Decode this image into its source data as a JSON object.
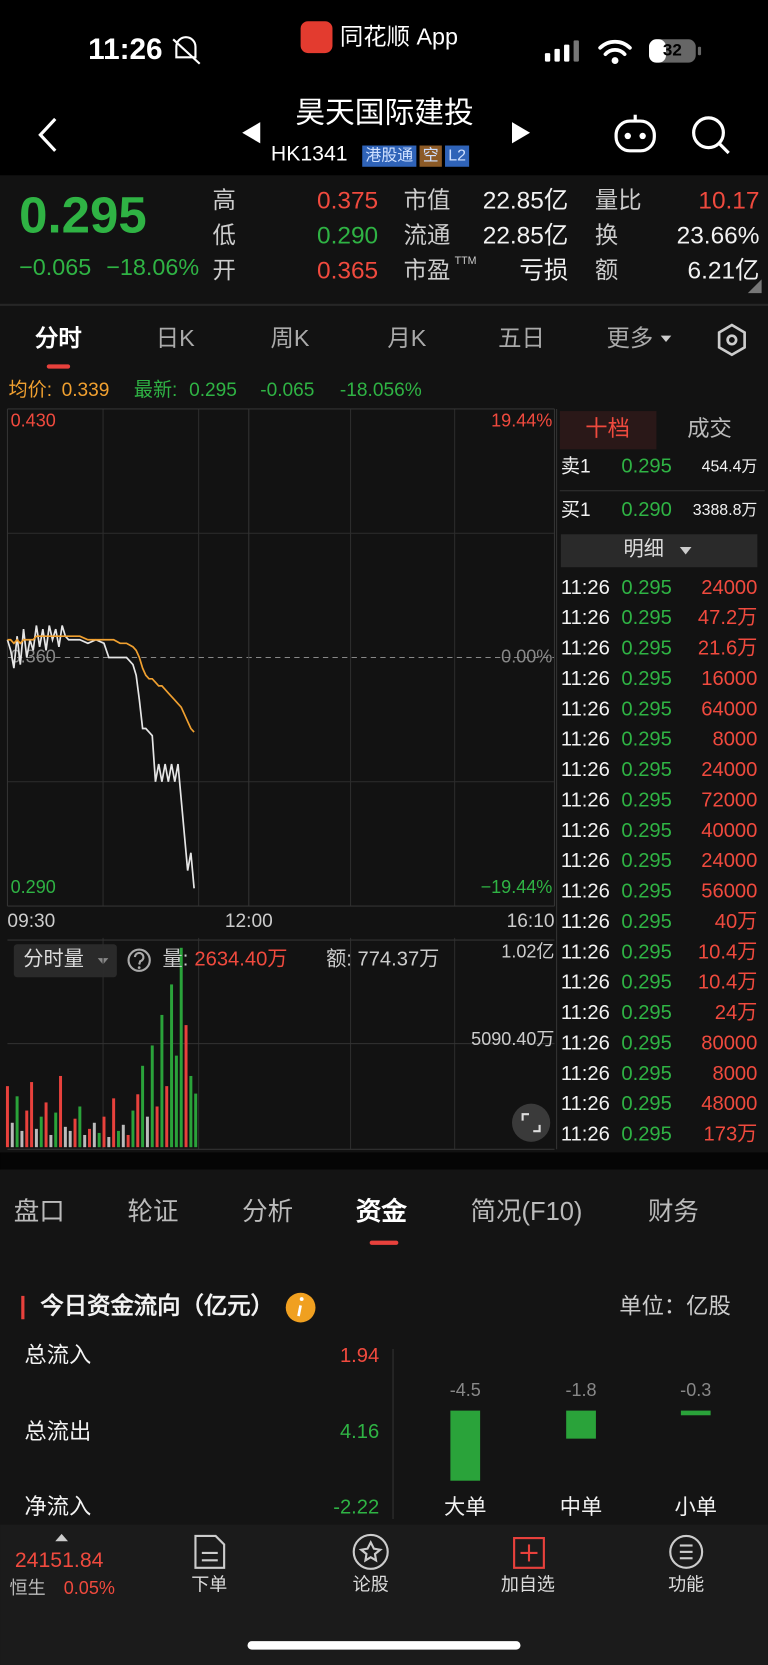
{
  "status_bar": {
    "time": "11:26",
    "app": "同花顺 App",
    "battery": "32"
  },
  "header": {
    "title": "昊天国际建投",
    "code": "HK1341",
    "tags": [
      "港股通",
      "空",
      "L2"
    ]
  },
  "quote": {
    "price": "0.295",
    "change": "−0.065",
    "change_pct": "−18.06%",
    "ttm": "TTM",
    "stats": [
      [
        "高",
        "0.375"
      ],
      [
        "低",
        "0.290"
      ],
      [
        "开",
        "0.365"
      ],
      [
        "市值",
        "22.85亿"
      ],
      [
        "流通",
        "22.85亿"
      ],
      [
        "市盈",
        "亏损"
      ],
      [
        "量比",
        "10.17"
      ],
      [
        "换",
        "23.66%"
      ],
      [
        "额",
        "6.21亿"
      ]
    ]
  },
  "chart_tabs": [
    "分时",
    "日K",
    "周K",
    "月K",
    "五日",
    "更多"
  ],
  "chart_info": {
    "avg": "0.339",
    "last": "0.295",
    "change": "-0.065",
    "change_pct": "-18.056%"
  },
  "chart_data": [
    {
      "type": "line",
      "x": [
        0,
        2,
        4,
        6,
        8,
        10,
        12,
        14,
        16,
        18,
        20,
        22,
        24,
        26,
        28,
        30,
        32,
        34,
        36,
        38,
        40,
        45,
        50,
        55,
        60,
        63,
        66,
        70,
        74,
        78,
        80,
        82,
        84,
        86,
        88,
        90,
        92,
        94,
        96,
        98,
        100,
        102,
        104,
        106,
        108,
        110,
        112,
        114,
        116
      ],
      "series": [
        {
          "name": "最新:",
          "color": "#e6e6e6",
          "values": [
            0.365,
            0.362,
            0.357,
            0.366,
            0.358,
            0.368,
            0.36,
            0.365,
            0.362,
            0.369,
            0.363,
            0.368,
            0.362,
            0.369,
            0.365,
            0.368,
            0.363,
            0.369,
            0.366,
            0.365,
            0.365,
            0.365,
            0.364,
            0.365,
            0.364,
            0.36,
            0.36,
            0.36,
            0.36,
            0.358,
            0.355,
            0.348,
            0.34,
            0.34,
            0.339,
            0.338,
            0.325,
            0.33,
            0.325,
            0.33,
            0.325,
            0.33,
            0.325,
            0.33,
            0.32,
            0.31,
            0.3,
            0.305,
            0.295
          ]
        },
        {
          "name": "均价:",
          "color": "#f0a030",
          "values": [
            0.365,
            0.365,
            0.364,
            0.365,
            0.364,
            0.365,
            0.365,
            0.365,
            0.365,
            0.366,
            0.366,
            0.366,
            0.366,
            0.366,
            0.366,
            0.366,
            0.366,
            0.366,
            0.366,
            0.366,
            0.366,
            0.366,
            0.365,
            0.365,
            0.365,
            0.365,
            0.365,
            0.364,
            0.364,
            0.363,
            0.362,
            0.36,
            0.357,
            0.355,
            0.354,
            0.354,
            0.353,
            0.352,
            0.352,
            0.351,
            0.35,
            0.349,
            0.348,
            0.347,
            0.346,
            0.344,
            0.342,
            0.34,
            0.339
          ]
        }
      ],
      "xlim": [
        0,
        340
      ],
      "xticks": [
        {
          "value": 0,
          "label": "09:30"
        },
        {
          "value": 150,
          "label": "12:00"
        },
        {
          "value": 340,
          "label": "16:10"
        }
      ],
      "ylim": [
        0.29,
        0.43
      ],
      "yticks": [
        {
          "value": 0.43,
          "label": "0.430"
        },
        {
          "value": 0.36,
          "label": "0.360"
        },
        {
          "value": 0.29,
          "label": "0.290"
        }
      ],
      "y2lim": [
        -19.44,
        19.44
      ],
      "y2ticks": [
        {
          "value": 19.44,
          "label": "19.44%"
        },
        {
          "value": 0,
          "label": "0.00%"
        },
        {
          "value": -19.44,
          "label": "−19.44%"
        }
      ],
      "grid": true
    },
    {
      "type": "bar",
      "x": [
        0,
        3,
        6,
        9,
        12,
        15,
        18,
        21,
        24,
        27,
        30,
        33,
        36,
        39,
        42,
        45,
        48,
        51,
        54,
        57,
        60,
        63,
        66,
        69,
        72,
        75,
        78,
        81,
        84,
        87,
        90,
        93,
        96,
        99,
        102,
        105,
        108,
        111,
        114,
        117
      ],
      "values": [
        3000,
        1200,
        2500,
        800,
        1800,
        3200,
        900,
        1500,
        2200,
        600,
        1700,
        3500,
        1000,
        800,
        1400,
        2000,
        600,
        900,
        1200,
        700,
        1500,
        500,
        2400,
        800,
        1100,
        600,
        1800,
        2600,
        4000,
        1500,
        5000,
        2000,
        6500,
        3000,
        8000,
        4500,
        9800,
        6000,
        3500,
        2634.4
      ],
      "colors": [
        "#e8413c",
        "#bbbbbb",
        "#2aa33a",
        "#bbbbbb",
        "#e8413c",
        "#e8413c",
        "#bbbbbb",
        "#2aa33a",
        "#e8413c",
        "#bbbbbb",
        "#2aa33a",
        "#e8413c",
        "#bbbbbb",
        "#bbbbbb",
        "#e8413c",
        "#2aa33a",
        "#bbbbbb",
        "#e8413c",
        "#bbbbbb",
        "#2aa33a",
        "#e8413c",
        "#bbbbbb",
        "#e8413c",
        "#2aa33a",
        "#bbbbbb",
        "#e8413c",
        "#2aa33a",
        "#e8413c",
        "#2aa33a",
        "#bbbbbb",
        "#2aa33a",
        "#e8413c",
        "#2aa33a",
        "#e8413c",
        "#2aa33a",
        "#2aa33a",
        "#2aa33a",
        "#e8413c",
        "#2aa33a",
        "#2aa33a"
      ],
      "xlim": [
        0,
        340
      ],
      "ylim": [
        0,
        10180.8
      ],
      "yticks": [
        {
          "value": 5090.4,
          "label": "5090.40万"
        },
        {
          "value": 10180.8,
          "label": "1.02亿"
        }
      ]
    },
    {
      "type": "bar",
      "categories": [
        "大单",
        "中单",
        "小单"
      ],
      "values": [
        -4.5,
        -1.8,
        -0.3
      ],
      "color": "#2aa33a",
      "ylim": [
        -4.5,
        0
      ]
    }
  ],
  "volume_info": {
    "selector": "分时量",
    "vol_label": "量:",
    "vol": "2634.40万",
    "amt": "额: 774.37万"
  },
  "order_book": {
    "tabs": [
      "十档",
      "成交"
    ],
    "rows": [
      [
        "卖1",
        "0.295",
        "454.4万"
      ],
      [
        "买1",
        "0.290",
        "3388.8万"
      ]
    ],
    "detail": "明细",
    "trades": [
      [
        "11:26",
        "0.295",
        "24000"
      ],
      [
        "11:26",
        "0.295",
        "47.2万"
      ],
      [
        "11:26",
        "0.295",
        "21.6万"
      ],
      [
        "11:26",
        "0.295",
        "16000"
      ],
      [
        "11:26",
        "0.295",
        "64000"
      ],
      [
        "11:26",
        "0.295",
        "8000"
      ],
      [
        "11:26",
        "0.295",
        "24000"
      ],
      [
        "11:26",
        "0.295",
        "72000"
      ],
      [
        "11:26",
        "0.295",
        "40000"
      ],
      [
        "11:26",
        "0.295",
        "24000"
      ],
      [
        "11:26",
        "0.295",
        "56000"
      ],
      [
        "11:26",
        "0.295",
        "40万"
      ],
      [
        "11:26",
        "0.295",
        "10.4万"
      ],
      [
        "11:26",
        "0.295",
        "10.4万"
      ],
      [
        "11:26",
        "0.295",
        "24万"
      ],
      [
        "11:26",
        "0.295",
        "80000"
      ],
      [
        "11:26",
        "0.295",
        "8000"
      ],
      [
        "11:26",
        "0.295",
        "48000"
      ],
      [
        "11:26",
        "0.295",
        "173万"
      ]
    ]
  },
  "section_tabs": [
    "盘口",
    "轮证",
    "分析",
    "资金",
    "简况(F10)",
    "财务"
  ],
  "fund_flow": {
    "title": "今日资金流向（亿元）",
    "unit": "单位：亿股",
    "rows": [
      [
        "总流入",
        "1.94"
      ],
      [
        "总流出",
        "4.16"
      ],
      [
        "净流入",
        "-2.22"
      ]
    ]
  },
  "bottom_nav": {
    "index_value": "24151.84",
    "index_name": "恒生",
    "index_change": "0.05%",
    "items": [
      "下单",
      "论股",
      "加自选",
      "功能"
    ]
  }
}
